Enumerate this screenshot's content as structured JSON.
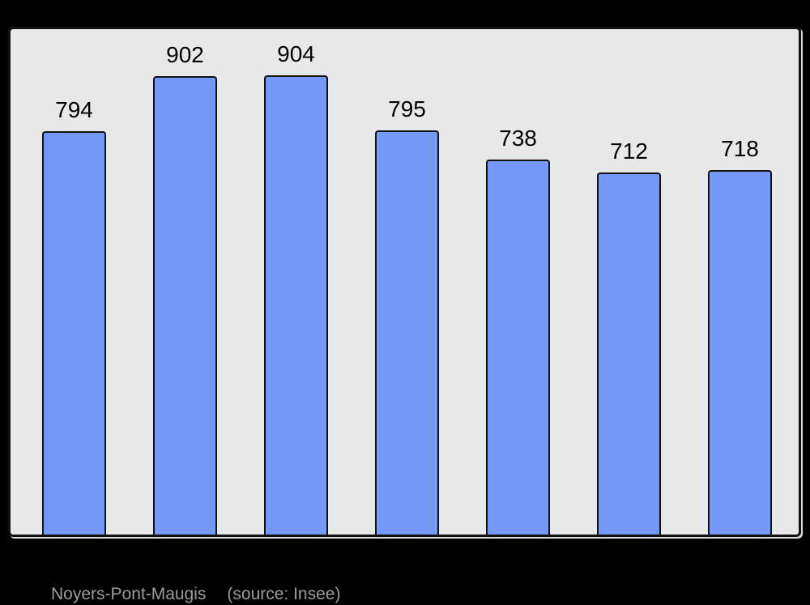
{
  "chart_data": {
    "type": "bar",
    "values": [
      794,
      902,
      904,
      795,
      738,
      712,
      718
    ],
    "bar_labels": [
      "794",
      "902",
      "904",
      "795",
      "738",
      "712",
      "718"
    ],
    "title": "Noyers-Pont-Maugis",
    "source_note": "(source: Insee)",
    "xlabel": "",
    "ylabel": "",
    "ylim": [
      0,
      995
    ],
    "grid": false,
    "legend": false,
    "data_labels_position": "above-bars",
    "colors": {
      "page_background": "#000000",
      "plot_background": "#e8e8e8",
      "plot_border": "#111111",
      "plot_shadow": "#ffffff",
      "bar_fill": "#7599f8",
      "bar_border": "#111111",
      "label_text": "#000000",
      "caption_text": "#9b9b9b"
    }
  }
}
